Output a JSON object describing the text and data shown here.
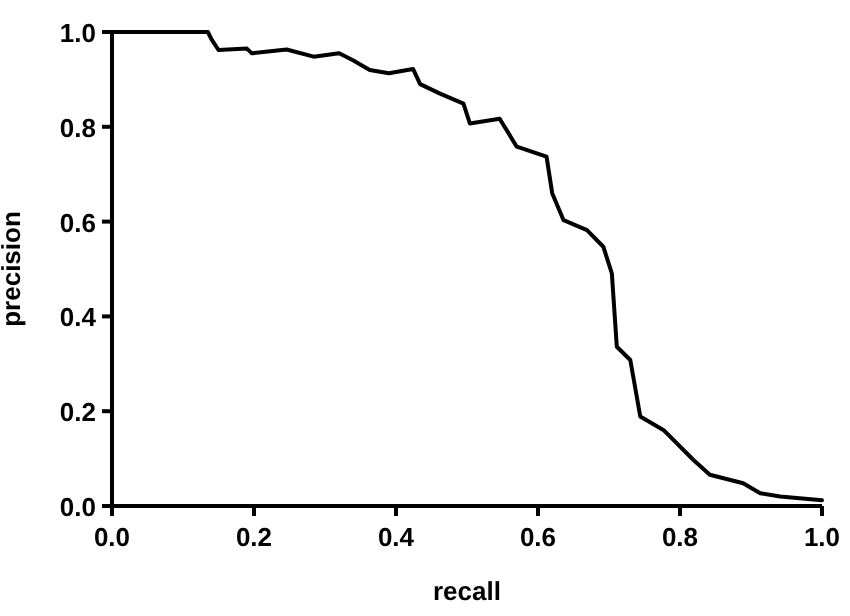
{
  "chart_data": {
    "type": "line",
    "xlabel": "recall",
    "ylabel": "precision",
    "x": [
      0,
      0.135,
      0.14,
      0.15,
      0.19,
      0.197,
      0.246,
      0.284,
      0.32,
      0.34,
      0.363,
      0.39,
      0.424,
      0.434,
      0.462,
      0.495,
      0.504,
      0.546,
      0.57,
      0.612,
      0.62,
      0.636,
      0.669,
      0.692,
      0.704,
      0.711,
      0.73,
      0.744,
      0.777,
      0.819,
      0.842,
      0.889,
      0.913,
      0.941,
      1.0
    ],
    "series": [
      {
        "color": "#000000",
        "values": [
          1.0,
          1.0,
          0.985,
          0.962,
          0.965,
          0.955,
          0.963,
          0.948,
          0.955,
          0.94,
          0.92,
          0.913,
          0.922,
          0.89,
          0.87,
          0.849,
          0.807,
          0.817,
          0.758,
          0.737,
          0.66,
          0.603,
          0.582,
          0.547,
          0.491,
          0.336,
          0.308,
          0.189,
          0.16,
          0.097,
          0.066,
          0.048,
          0.027,
          0.02,
          0.012
        ]
      }
    ],
    "xlim": [
      0,
      1
    ],
    "ylim": [
      0,
      1
    ],
    "xticks": [
      {
        "value": 0,
        "label": "0.0"
      },
      0.2,
      0.4,
      0.6,
      0.8,
      {
        "value": 1,
        "label": "1.0"
      }
    ],
    "yticks": [
      {
        "value": 0,
        "label": "0.0"
      },
      0.2,
      0.4,
      0.6,
      0.8,
      {
        "value": 1,
        "label": "1.0"
      }
    ],
    "grid": false,
    "marker": "none",
    "line_style": "solid"
  }
}
